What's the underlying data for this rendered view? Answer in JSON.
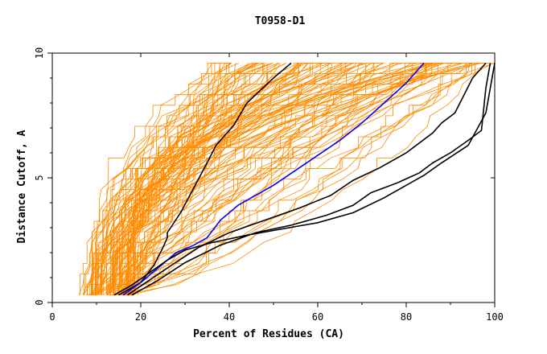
{
  "chart_data": {
    "type": "line",
    "title": "T0958-D1",
    "xlabel": "Percent of Residues (CA)",
    "ylabel": "Distance Cutoff, A",
    "xlim": [
      0,
      100
    ],
    "ylim": [
      0,
      10
    ],
    "x_ticks": [
      "0",
      "20",
      "40",
      "60",
      "80",
      "100"
    ],
    "y_ticks": [
      "0",
      "5",
      "10"
    ],
    "colors": {
      "background_models": "#ff8c00",
      "highlight_black": "#000000",
      "highlight_blue": "#0000ff"
    },
    "background_model_count": 120,
    "highlighted_series": [
      {
        "color": "#000000",
        "x": [
          15,
          20,
          23,
          25,
          26,
          26,
          29,
          32,
          35,
          37,
          41,
          44,
          47,
          50,
          52,
          54
        ],
        "y": [
          0.3,
          0.8,
          1.5,
          2.2,
          2.6,
          2.8,
          3.6,
          4.6,
          5.6,
          6.3,
          7.1,
          8.0,
          8.5,
          9.0,
          9.3,
          9.6
        ]
      },
      {
        "color": "#0000ff",
        "x": [
          16,
          20,
          24,
          28,
          32,
          35,
          38,
          42,
          46,
          50,
          55,
          60,
          65,
          70,
          75,
          80,
          84
        ],
        "y": [
          0.3,
          0.8,
          1.4,
          2.0,
          2.3,
          2.6,
          3.3,
          3.9,
          4.3,
          4.7,
          5.3,
          5.9,
          6.5,
          7.2,
          8.0,
          8.8,
          9.6
        ]
      },
      {
        "color": "#000000",
        "x": [
          17,
          22,
          27,
          33,
          40,
          48,
          56,
          63,
          68,
          74,
          80,
          86,
          88,
          91,
          93,
          95,
          98
        ],
        "y": [
          0.3,
          0.9,
          1.5,
          2.2,
          2.8,
          3.3,
          3.8,
          4.3,
          4.9,
          5.4,
          6.0,
          6.8,
          7.2,
          7.6,
          8.3,
          9.0,
          9.6
        ]
      },
      {
        "color": "#000000",
        "x": [
          18,
          24,
          30,
          38,
          46,
          54,
          62,
          68,
          72,
          78,
          83,
          86,
          90,
          94,
          97,
          98,
          99
        ],
        "y": [
          0.3,
          0.9,
          1.6,
          2.3,
          2.8,
          3.1,
          3.5,
          3.9,
          4.4,
          4.8,
          5.2,
          5.6,
          6.0,
          6.5,
          6.9,
          8.6,
          9.6
        ]
      },
      {
        "color": "#000000",
        "x": [
          14,
          18,
          22,
          26,
          30,
          36,
          44,
          52,
          60,
          68,
          75,
          80,
          84,
          88,
          94,
          98,
          100
        ],
        "y": [
          0.3,
          0.7,
          1.2,
          1.7,
          2.1,
          2.4,
          2.7,
          2.95,
          3.2,
          3.6,
          4.2,
          4.7,
          5.1,
          5.6,
          6.3,
          7.6,
          9.6
        ]
      }
    ]
  }
}
